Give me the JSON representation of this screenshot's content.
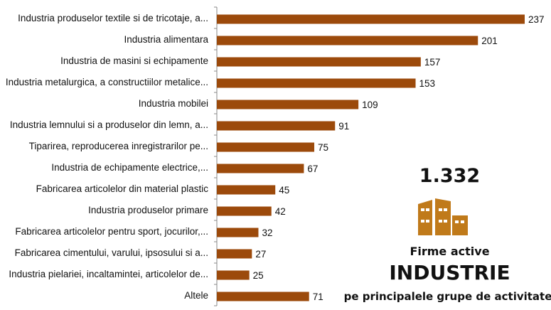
{
  "chart_data": {
    "type": "bar",
    "orientation": "horizontal",
    "categories": [
      "Industria produselor textile si de tricotaje, a...",
      "Industria alimentara",
      "Industria de masini si echipamente",
      "Industria metalurgica, a constructiilor metalice...",
      "Industria mobilei",
      "Industria lemnului si a produselor din lemn, a...",
      "Tiparirea, reproducerea inregistrarilor pe...",
      "Industria de echipamente electrice,...",
      "Fabricarea articolelor din material plastic",
      "Industria produselor primare",
      "Fabricarea articolelor pentru sport, jocurilor,...",
      "Fabricarea cimentului, varului, ipsosului si a...",
      "Industria pielariei, incaltamintei, articolelor de...",
      "Altele"
    ],
    "values": [
      237,
      201,
      157,
      153,
      109,
      91,
      75,
      67,
      45,
      42,
      32,
      27,
      25,
      71
    ],
    "bar_color": "#9C4A0B",
    "data_labels": true
  },
  "summary": {
    "total": "1.332",
    "line1": "Firme active",
    "line2": "INDUSTRIE",
    "line3": "pe principalele grupe de activitate",
    "icon": "buildings-icon",
    "icon_color": "#C07A1A"
  }
}
